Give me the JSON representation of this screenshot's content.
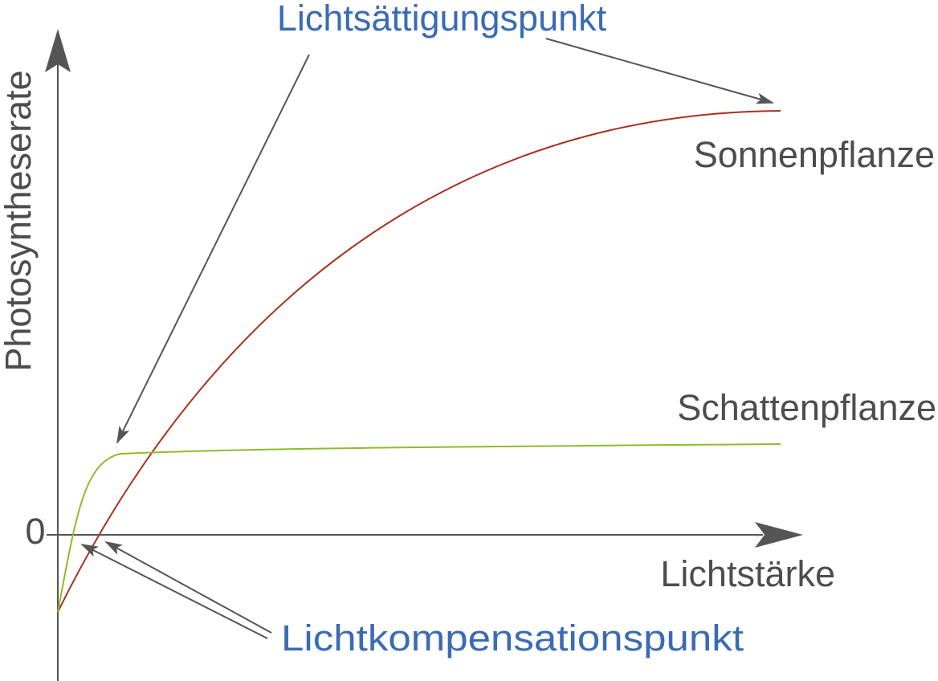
{
  "title": "Lichtsättigungspunkt",
  "y_axis_label": "Photosyntheserate",
  "x_axis_label": "Lichtstärke",
  "zero_label": "0",
  "curves": [
    {
      "label": "Sonnenpflanze"
    },
    {
      "label": "Schattenpflanze"
    }
  ],
  "annotation": "Lichtkompensationspunkt"
}
